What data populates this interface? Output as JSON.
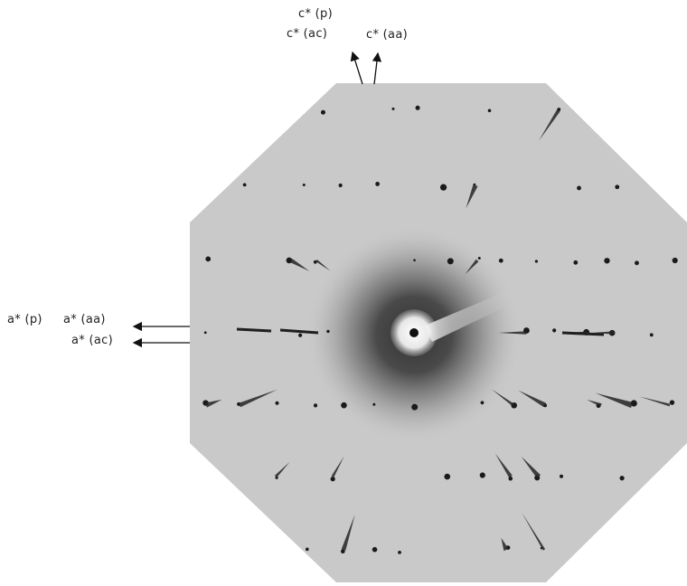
{
  "labels": {
    "c_p": "c* (p)",
    "c_ac": "c* (ac)",
    "c_aa": "c* (aa)",
    "a_p": "a* (p)",
    "a_aa": "a* (aa)",
    "a_ac": "a* (ac)"
  },
  "colors": {
    "film_background": "#c9c9c9",
    "spot": "#1a1a1a",
    "arrow": "#111111"
  }
}
